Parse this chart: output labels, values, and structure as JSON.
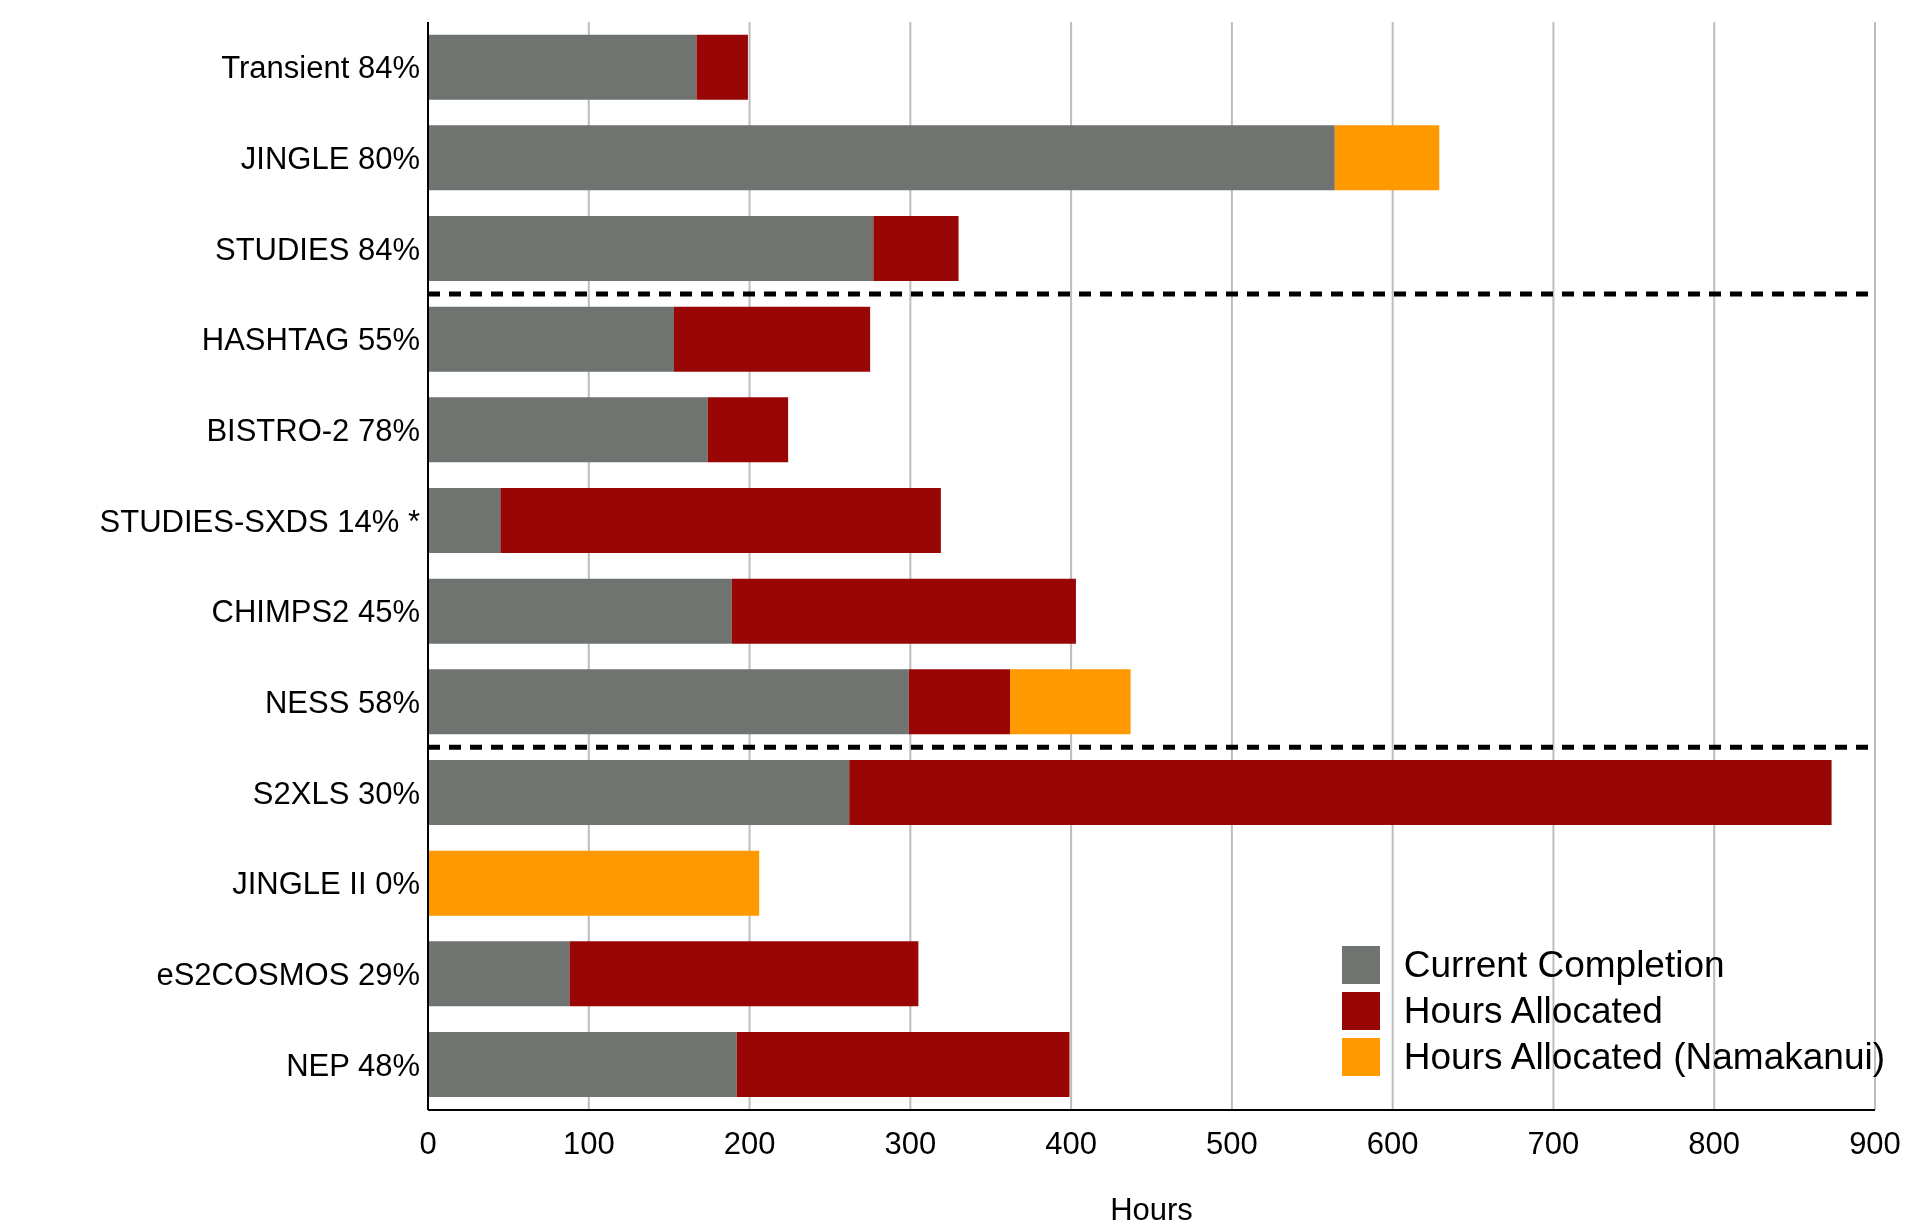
{
  "chart_data": {
    "type": "bar",
    "orientation": "horizontal",
    "stacked": true,
    "xlabel": "Hours",
    "categories": [
      "Transient 84%",
      "JINGLE  80%",
      "STUDIES 84%",
      "HASHTAG 55%",
      "BISTRO-2 78%",
      "STUDIES-SXDS 14% *",
      "CHIMPS2 45%",
      "NESS 58%",
      "S2XLS 30%",
      "JINGLE II 0%",
      "eS2COSMOS 29%",
      "NEP 48%"
    ],
    "series": [
      {
        "name": "Current Completion",
        "color": "#6f7471",
        "values": [
          167,
          564,
          277,
          153,
          174,
          45,
          189,
          299,
          262,
          null,
          88,
          192
        ]
      },
      {
        "name": "Hours Allocated",
        "color": "#990606",
        "values": [
          32,
          null,
          53,
          122,
          50,
          274,
          214,
          63,
          611,
          null,
          217,
          207
        ]
      },
      {
        "name": "Hours Allocated (Namakanui)",
        "color": "#ff9900",
        "values": [
          null,
          65,
          null,
          null,
          null,
          null,
          null,
          75,
          null,
          206,
          null,
          null
        ]
      }
    ],
    "xlim": [
      0,
      900
    ],
    "xticks": [
      0,
      100,
      200,
      300,
      400,
      500,
      600,
      700,
      800,
      900
    ],
    "grid": "x",
    "legend": "bottom right"
  }
}
